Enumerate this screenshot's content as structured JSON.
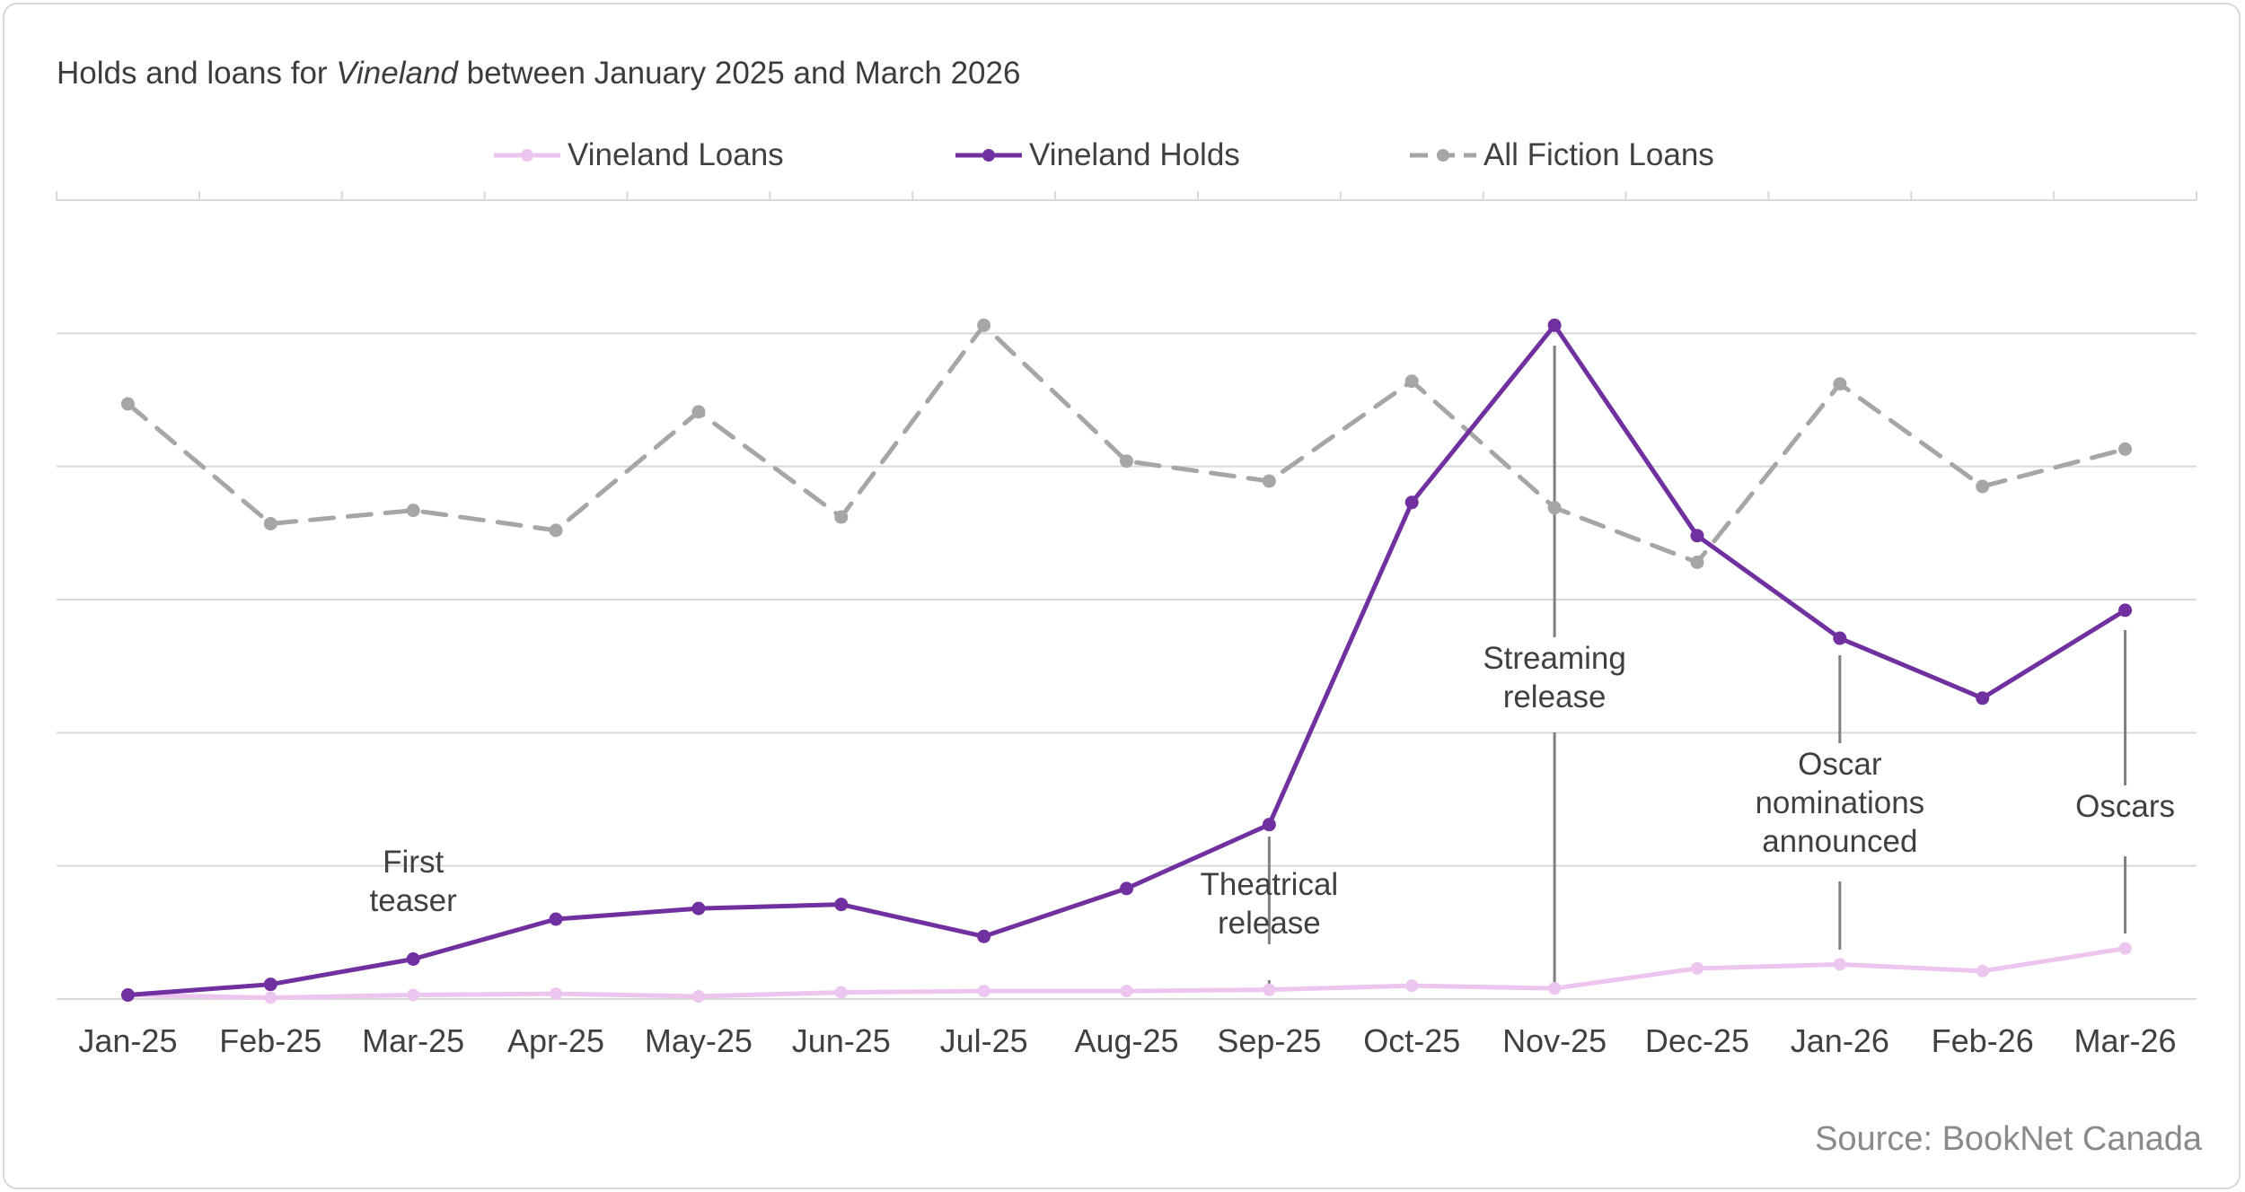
{
  "title": {
    "prefix": "Holds and loans for ",
    "italic": "Vineland",
    "suffix": " between January 2025 and March 2026"
  },
  "source": "Source: BookNet Canada",
  "colors": {
    "loans": "#ecc6ee",
    "holds": "#7030a0",
    "fiction": "#a6a6a6",
    "grid": "#d9d9d9",
    "annotation_line": "#7f7f7f"
  },
  "chart_data": {
    "type": "line",
    "categories": [
      "Jan-25",
      "Feb-25",
      "Mar-25",
      "Apr-25",
      "May-25",
      "Jun-25",
      "Jul-25",
      "Aug-25",
      "Sep-25",
      "Oct-25",
      "Nov-25",
      "Dec-25",
      "Jan-26",
      "Feb-26",
      "Mar-26"
    ],
    "ylim": [
      0,
      600
    ],
    "y_gridlines": [
      0,
      100,
      200,
      300,
      400,
      500,
      600
    ],
    "y_tick_labels_shown": false,
    "grid": true,
    "legend_position": "top",
    "series": [
      {
        "name": "Vineland Loans",
        "style": "solid-light",
        "values": [
          3,
          1,
          3,
          4,
          2,
          5,
          6,
          6,
          7,
          10,
          8,
          23,
          26,
          21,
          38
        ]
      },
      {
        "name": "Vineland Holds",
        "style": "solid",
        "values": [
          3,
          11,
          30,
          60,
          68,
          71,
          47,
          83,
          131,
          373,
          506,
          348,
          271,
          226,
          292
        ]
      },
      {
        "name": "All Fiction Loans",
        "style": "dashed",
        "values": [
          447,
          357,
          367,
          352,
          441,
          362,
          506,
          404,
          389,
          464,
          369,
          328,
          462,
          385,
          413
        ]
      }
    ],
    "annotations": [
      {
        "text": [
          "First",
          "teaser"
        ],
        "category": "Mar-25"
      },
      {
        "text": [
          "Theatrical",
          "release"
        ],
        "category": "Sep-25"
      },
      {
        "text": [
          "Streaming",
          "release"
        ],
        "category": "Nov-25"
      },
      {
        "text": [
          "Oscar",
          "nominations",
          "announced"
        ],
        "category": "Jan-26"
      },
      {
        "text": [
          "Oscars"
        ],
        "category": "Mar-26"
      }
    ]
  }
}
